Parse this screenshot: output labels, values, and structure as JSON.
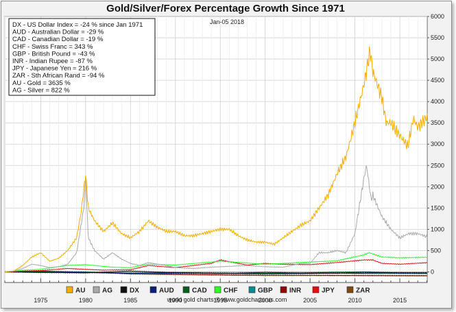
{
  "chart_data": {
    "type": "line",
    "title": "Gold/Silver/Forex Percentage Growth Since 1971",
    "date_label": "Jan-05  2018",
    "footer": "world gold charts ® www.goldchartsrus.com",
    "xlim": [
      1971.0,
      2018.05
    ],
    "ylim": [
      -250,
      6000
    ],
    "x_ticks": [
      1975,
      1980,
      1985,
      1990,
      1995,
      2000,
      2005,
      2010,
      2015
    ],
    "y_ticks": [
      6000,
      5500,
      5000,
      4500,
      4000,
      3500,
      3000,
      2500,
      2000,
      1500,
      1000,
      500,
      0
    ],
    "info_lines": [
      "DX - US Dollar Index = -24 % since Jan 1971",
      "AUD - Australian Dollar = -29 %",
      "CAD - Canadian Dollar = -19 %",
      "CHF - Swiss Franc = 343 %",
      "GBP - British Pound = -43 %",
      "INR - Indian Rupee = -87 %",
      "JPY - Japanese Yen = 216 %",
      "ZAR - Sth African Rand = -94 %",
      "AU - Gold = 3635 %",
      "AG - Silver = 822 %"
    ],
    "legend_position": "bottom",
    "grid": true,
    "series": [
      {
        "name": "AU",
        "color": "#f5ad00",
        "x": [
          1971,
          1972,
          1973,
          1974,
          1975,
          1976,
          1977,
          1978,
          1979,
          1979.5,
          1980.0,
          1980.3,
          1981,
          1982,
          1983,
          1984,
          1985,
          1986,
          1987,
          1988,
          1989,
          1990,
          1991,
          1992,
          1993,
          1994,
          1995,
          1996,
          1997,
          1998,
          1999,
          2000,
          2001,
          2002,
          2003,
          2004,
          2005,
          2006,
          2007,
          2008,
          2009,
          2010,
          2011,
          2011.7,
          2012,
          2013,
          2013.5,
          2014,
          2015,
          2015.9,
          2016.5,
          2017,
          2018.05
        ],
        "values": [
          0,
          20,
          150,
          350,
          450,
          250,
          320,
          500,
          800,
          1400,
          2300,
          1500,
          1200,
          950,
          1150,
          900,
          800,
          950,
          1200,
          1050,
          950,
          950,
          850,
          850,
          900,
          950,
          1000,
          1000,
          850,
          750,
          700,
          700,
          650,
          800,
          950,
          1100,
          1200,
          1500,
          1800,
          2300,
          2700,
          3500,
          4400,
          5200,
          4700,
          4100,
          3500,
          3500,
          3200,
          2950,
          3600,
          3400,
          3635
        ]
      },
      {
        "name": "AG",
        "color": "#a9a9a9",
        "x": [
          1971,
          1972,
          1973,
          1974,
          1975,
          1976,
          1977,
          1978,
          1979,
          1979.8,
          1980.0,
          1980.3,
          1981,
          1982,
          1983,
          1984,
          1985,
          1986,
          1987,
          1988,
          1989,
          1990,
          1992,
          1994,
          1996,
          1998,
          2000,
          2002,
          2004,
          2005,
          2006,
          2007,
          2008,
          2009,
          2010,
          2011,
          2011.3,
          2011.8,
          2012,
          2013,
          2014,
          2015,
          2016,
          2017,
          2018.05
        ],
        "values": [
          0,
          20,
          80,
          180,
          150,
          100,
          120,
          180,
          450,
          1500,
          2200,
          800,
          500,
          300,
          450,
          300,
          200,
          150,
          220,
          180,
          150,
          100,
          80,
          110,
          130,
          150,
          120,
          110,
          200,
          200,
          450,
          450,
          500,
          450,
          900,
          2200,
          2500,
          1700,
          1800,
          1300,
          1000,
          800,
          900,
          900,
          822
        ]
      },
      {
        "name": "DX",
        "color": "#111111",
        "x": [
          1971,
          1975,
          1980,
          1985,
          1990,
          1995,
          2000,
          2005,
          2008,
          2010,
          2015,
          2018.05
        ],
        "values": [
          0,
          -15,
          -25,
          20,
          -20,
          -40,
          -10,
          -30,
          -35,
          -30,
          -20,
          -24
        ]
      },
      {
        "name": "AUD",
        "color": "#0a1f7a",
        "x": [
          1971,
          1975,
          1980,
          1985,
          1990,
          1995,
          2000,
          2005,
          2008,
          2011,
          2015,
          2018.05
        ],
        "values": [
          0,
          20,
          -10,
          -40,
          -30,
          -35,
          -50,
          -40,
          -30,
          -5,
          -30,
          -29
        ]
      },
      {
        "name": "CAD",
        "color": "#0b5d1e",
        "x": [
          1971,
          1975,
          1980,
          1985,
          1990,
          1995,
          2000,
          2005,
          2008,
          2011,
          2015,
          2018.05
        ],
        "values": [
          0,
          5,
          -10,
          -25,
          -15,
          -25,
          -35,
          -20,
          -5,
          0,
          -20,
          -19
        ]
      },
      {
        "name": "CHF",
        "color": "#2aff2a",
        "x": [
          1971,
          1973,
          1975,
          1978,
          1980,
          1983,
          1985,
          1987,
          1990,
          1995,
          2000,
          2002,
          2005,
          2008,
          2011,
          2011.6,
          2013,
          2015,
          2018.05
        ],
        "values": [
          0,
          40,
          60,
          150,
          170,
          110,
          100,
          180,
          160,
          250,
          180,
          200,
          230,
          260,
          400,
          450,
          350,
          330,
          343
        ]
      },
      {
        "name": "GBP",
        "color": "#0a8a8a",
        "x": [
          1971,
          1975,
          1980,
          1985,
          1990,
          1995,
          2000,
          2005,
          2008,
          2010,
          2015,
          2018.05
        ],
        "values": [
          0,
          -10,
          0,
          -50,
          -25,
          -35,
          -35,
          -25,
          -20,
          -40,
          -40,
          -43
        ]
      },
      {
        "name": "INR",
        "color": "#8b0a0a",
        "x": [
          1971,
          1975,
          1980,
          1985,
          1990,
          1995,
          2000,
          2005,
          2010,
          2015,
          2018.05
        ],
        "values": [
          0,
          -5,
          -15,
          -35,
          -55,
          -70,
          -80,
          -80,
          -83,
          -86,
          -87
        ]
      },
      {
        "name": "JPY",
        "color": "#e01010",
        "x": [
          1971,
          1973,
          1975,
          1978,
          1980,
          1982,
          1985,
          1987,
          1990,
          1994,
          1995,
          1998,
          2000,
          2002,
          2005,
          2008,
          2011,
          2012,
          2013,
          2015,
          2018.05
        ],
        "values": [
          0,
          20,
          30,
          80,
          60,
          40,
          50,
          150,
          100,
          200,
          280,
          160,
          200,
          180,
          170,
          220,
          280,
          280,
          200,
          180,
          216
        ]
      },
      {
        "name": "ZAR",
        "color": "#7a4a12",
        "x": [
          1971,
          1975,
          1980,
          1985,
          1990,
          1995,
          2000,
          2005,
          2010,
          2015,
          2018.05
        ],
        "values": [
          0,
          10,
          0,
          -50,
          -65,
          -75,
          -85,
          -86,
          -88,
          -93,
          -94
        ]
      }
    ]
  }
}
